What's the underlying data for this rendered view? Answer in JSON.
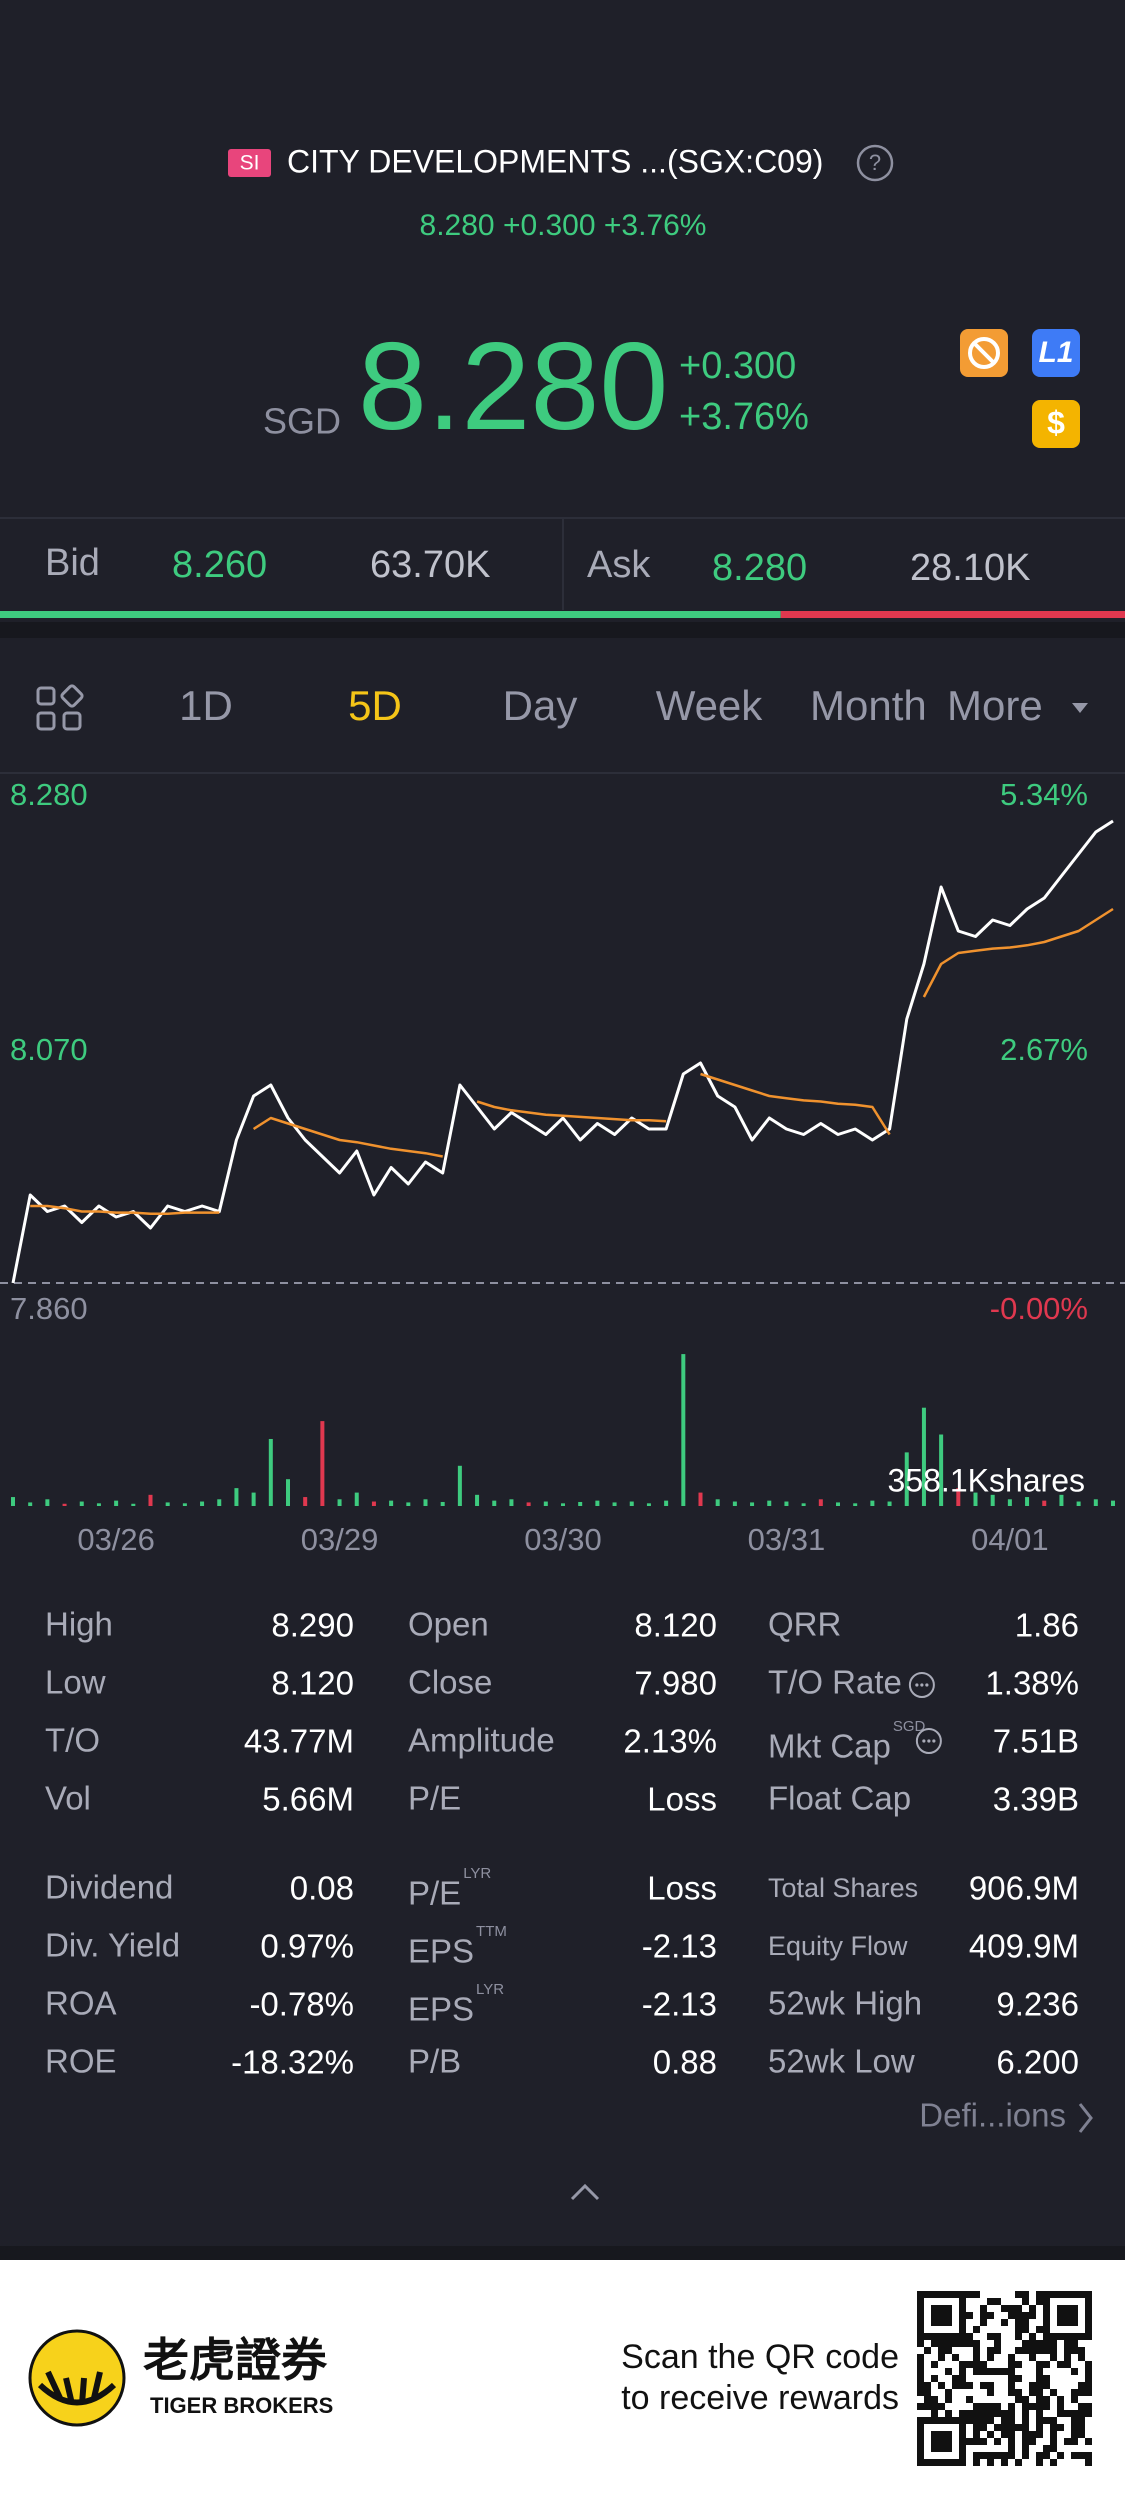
{
  "header": {
    "badge": "SI",
    "title": "CITY DEVELOPMENTS ...(SGX:C09)",
    "summary": "8.280 +0.300 +3.76%"
  },
  "quote": {
    "currency": "SGD",
    "price": "8.280",
    "change": "+0.300",
    "change_pct": "+3.76%"
  },
  "order_book": {
    "bid_label": "Bid",
    "bid_price": "8.260",
    "bid_size": "63.70K",
    "ask_label": "Ask",
    "ask_price": "8.280",
    "ask_size": "28.10K",
    "bid_ratio": 69.4
  },
  "tabs": [
    "1D",
    "5D",
    "Day",
    "Week",
    "Month",
    "More"
  ],
  "active_tab": 1,
  "chart_data": {
    "type": "line",
    "categories": [
      null,
      null,
      null,
      null,
      null,
      null,
      "03/26",
      null,
      null,
      null,
      null,
      null,
      null,
      null,
      null,
      null,
      null,
      null,
      null,
      "03/29",
      null,
      null,
      null,
      null,
      null,
      null,
      null,
      null,
      null,
      null,
      null,
      null,
      "03/30",
      null,
      null,
      null,
      null,
      null,
      null,
      null,
      null,
      null,
      null,
      null,
      null,
      "03/31",
      null,
      null,
      null,
      null,
      null,
      null,
      null,
      null,
      null,
      null,
      null,
      null,
      "04/01",
      null,
      null,
      null,
      null,
      null,
      null
    ],
    "series": [
      {
        "color": "#ffffff",
        "values": [
          7.86,
          7.94,
          7.925,
          7.93,
          7.915,
          7.93,
          7.92,
          7.925,
          7.91,
          7.93,
          7.925,
          7.93,
          7.925,
          7.99,
          8.03,
          8.04,
          8.01,
          7.99,
          7.975,
          7.96,
          7.98,
          7.94,
          7.965,
          7.95,
          7.97,
          7.96,
          8.04,
          8.02,
          8.0,
          8.015,
          8.005,
          7.995,
          8.01,
          7.99,
          8.005,
          7.995,
          8.01,
          8.0,
          8.0,
          8.05,
          8.06,
          8.03,
          8.02,
          7.99,
          8.01,
          8.0,
          7.995,
          8.005,
          7.995,
          8.0,
          7.99,
          8.0,
          8.1,
          8.15,
          8.22,
          8.18,
          8.175,
          8.19,
          8.185,
          8.2,
          8.21,
          8.23,
          8.25,
          8.27,
          8.28
        ]
      },
      {
        "color": "#f0922e",
        "values": [
          null,
          7.93,
          7.93,
          7.928,
          7.925,
          7.925,
          7.924,
          7.924,
          7.923,
          7.923,
          7.924,
          7.924,
          7.924,
          null,
          8.0,
          8.01,
          8.005,
          8.0,
          7.995,
          7.99,
          7.988,
          7.985,
          7.982,
          7.98,
          7.978,
          7.975,
          null,
          8.025,
          8.02,
          8.017,
          8.015,
          8.013,
          8.012,
          8.011,
          8.01,
          8.009,
          8.008,
          8.008,
          8.007,
          null,
          8.05,
          8.045,
          8.04,
          8.035,
          8.03,
          8.028,
          8.026,
          8.025,
          8.023,
          8.022,
          8.02,
          7.995,
          null,
          8.12,
          8.15,
          8.16,
          8.162,
          8.164,
          8.165,
          8.167,
          8.17,
          8.175,
          8.18,
          8.19,
          8.2
        ]
      }
    ],
    "ylim": [
      7.86,
      8.28
    ],
    "yticks": [
      {
        "value": 8.28,
        "label": "8.280"
      },
      {
        "value": 8.07,
        "label": "8.070"
      },
      {
        "value": 7.86,
        "label": "7.860"
      }
    ],
    "y2lim": [
      0,
      5.34
    ],
    "y2ticks": [
      {
        "value": 5.34,
        "label": "5.34%"
      },
      {
        "value": 2.67,
        "label": "2.67%"
      },
      {
        "value": 0,
        "label": "-0.00%"
      }
    ],
    "volume": {
      "values": [
        20000,
        8000,
        15000,
        5000,
        10000,
        6000,
        12000,
        5000,
        25000,
        8000,
        6000,
        10000,
        15000,
        40000,
        30000,
        150000,
        60000,
        20000,
        190000,
        15000,
        30000,
        10000,
        12000,
        8000,
        15000,
        9000,
        90000,
        25000,
        12000,
        15000,
        8000,
        10000,
        6000,
        9000,
        12000,
        8000,
        10000,
        6000,
        12000,
        340000,
        30000,
        15000,
        10000,
        8000,
        12000,
        10000,
        6000,
        15000,
        8000,
        6000,
        12000,
        10000,
        120000,
        220000,
        160000,
        40000,
        30000,
        25000,
        15000,
        20000,
        12000,
        25000,
        10000,
        15000,
        12000
      ],
      "colors": [
        "#3ecb7f",
        "#3ecb7f",
        "#3ecb7f",
        "#e0384f",
        "#3ecb7f",
        "#3ecb7f",
        "#3ecb7f",
        "#3ecb7f",
        "#e0384f",
        "#3ecb7f",
        "#3ecb7f",
        "#3ecb7f",
        "#3ecb7f",
        "#3ecb7f",
        "#3ecb7f",
        "#3ecb7f",
        "#3ecb7f",
        "#e0384f",
        "#e0384f",
        "#3ecb7f",
        "#3ecb7f",
        "#e0384f",
        "#3ecb7f",
        "#3ecb7f",
        "#3ecb7f",
        "#3ecb7f",
        "#3ecb7f",
        "#3ecb7f",
        "#3ecb7f",
        "#3ecb7f",
        "#e0384f",
        "#3ecb7f",
        "#3ecb7f",
        "#3ecb7f",
        "#3ecb7f",
        "#3ecb7f",
        "#3ecb7f",
        "#3ecb7f",
        "#3ecb7f",
        "#3ecb7f",
        "#e0384f",
        "#3ecb7f",
        "#3ecb7f",
        "#3ecb7f",
        "#3ecb7f",
        "#3ecb7f",
        "#3ecb7f",
        "#e0384f",
        "#3ecb7f",
        "#3ecb7f",
        "#3ecb7f",
        "#3ecb7f",
        "#3ecb7f",
        "#3ecb7f",
        "#3ecb7f",
        "#e0384f",
        "#3ecb7f",
        "#3ecb7f",
        "#3ecb7f",
        "#3ecb7f",
        "#e0384f",
        "#3ecb7f",
        "#3ecb7f",
        "#3ecb7f",
        "#3ecb7f"
      ],
      "ylim": [
        0,
        358100
      ],
      "yticks": [
        {
          "value": 358100,
          "label": "358.1Kshares"
        }
      ]
    }
  },
  "stats": {
    "rows": [
      [
        {
          "label": "High",
          "value": "8.290"
        },
        {
          "label": "Open",
          "value": "8.120"
        },
        {
          "label": "QRR",
          "value": "1.86"
        }
      ],
      [
        {
          "label": "Low",
          "value": "8.120"
        },
        {
          "label": "Close",
          "value": "7.980"
        },
        {
          "label": "T/O Rate",
          "value": "1.38%"
        }
      ],
      [
        {
          "label": "T/O",
          "value": "43.77M"
        },
        {
          "label": "Amplitude",
          "value": "2.13%"
        },
        {
          "label": "Mkt Cap",
          "sup": "SGD",
          "value": "7.51B"
        }
      ],
      [
        {
          "label": "Vol",
          "value": "5.66M"
        },
        {
          "label": "P/E",
          "value": "Loss"
        },
        {
          "label": "Float Cap",
          "value": "3.39B"
        }
      ],
      [
        {
          "label": "Dividend",
          "value": "0.08"
        },
        {
          "label": "P/E",
          "sup": "LYR",
          "value": "Loss"
        },
        {
          "label": "Total Shares",
          "value": "906.9M"
        }
      ],
      [
        {
          "label": "Div. Yield",
          "value": "0.97%"
        },
        {
          "label": "EPS",
          "sup": "TTM",
          "value": "-2.13"
        },
        {
          "label": "Equity Flow",
          "value": "409.9M"
        }
      ],
      [
        {
          "label": "ROA",
          "value": "-0.78%"
        },
        {
          "label": "EPS",
          "sup": "LYR",
          "value": "-2.13"
        },
        {
          "label": "52wk High",
          "value": "9.236"
        }
      ],
      [
        {
          "label": "ROE",
          "value": "-18.32%"
        },
        {
          "label": "P/B",
          "value": "0.88"
        },
        {
          "label": "52wk Low",
          "value": "6.200"
        }
      ]
    ],
    "definitions": "Defi...ions"
  },
  "footer": {
    "brand_cn": "老虎證券",
    "brand_en": "TIGER BROKERS",
    "cta": [
      "Scan the QR code",
      "to receive rewards"
    ]
  }
}
